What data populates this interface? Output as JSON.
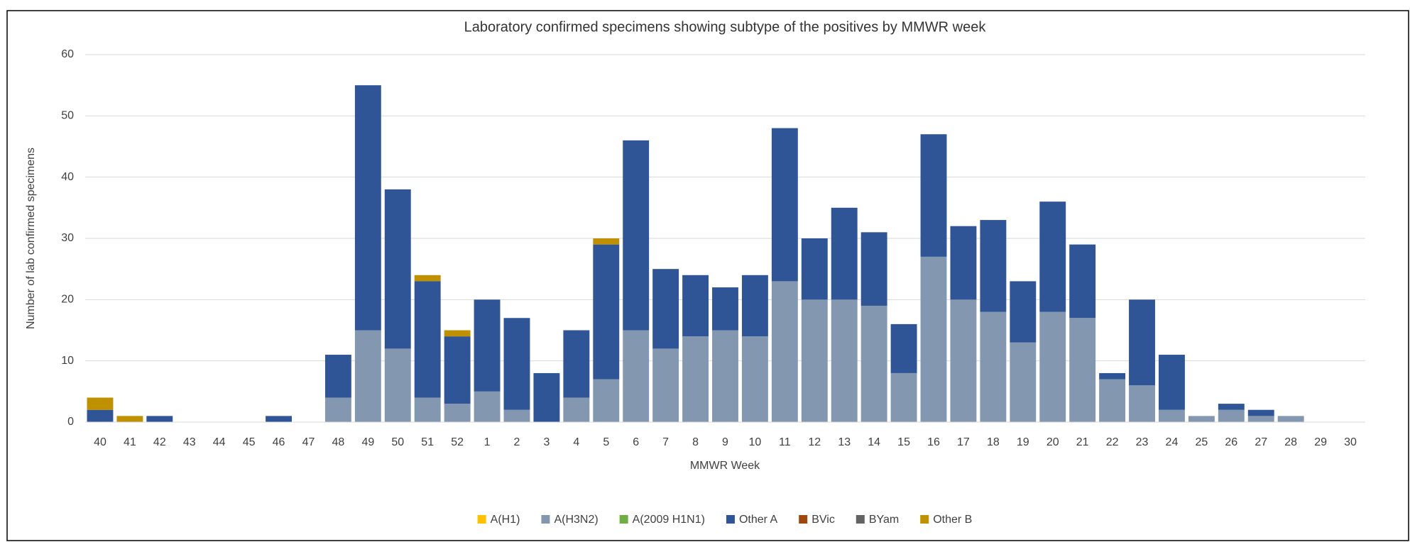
{
  "chart_data": {
    "type": "stacked_bar",
    "title": "Laboratory confirmed specimens showing subtype of the positives by MMWR week",
    "x_label": "MMWR Week",
    "y_label": "Number of lab confirmed specimens",
    "categories": [
      "40",
      "41",
      "42",
      "43",
      "44",
      "45",
      "46",
      "47",
      "48",
      "49",
      "50",
      "51",
      "52",
      "1",
      "2",
      "3",
      "4",
      "5",
      "6",
      "7",
      "8",
      "9",
      "10",
      "11",
      "12",
      "13",
      "14",
      "15",
      "16",
      "17",
      "18",
      "19",
      "20",
      "21",
      "22",
      "23",
      "24",
      "25",
      "26",
      "27",
      "28",
      "29",
      "30"
    ],
    "series": [
      {
        "name": "A(H1)",
        "color": "#ffc000",
        "values": [
          0,
          0,
          0,
          0,
          0,
          0,
          0,
          0,
          0,
          0,
          0,
          0,
          0,
          0,
          0,
          0,
          0,
          0,
          0,
          0,
          0,
          0,
          0,
          0,
          0,
          0,
          0,
          0,
          0,
          0,
          0,
          0,
          0,
          0,
          0,
          0,
          0,
          0,
          0,
          0,
          0,
          0,
          0
        ]
      },
      {
        "name": "A(H3N2)",
        "color": "#8497b0",
        "values": [
          0,
          0,
          0,
          0,
          0,
          0,
          0,
          0,
          4,
          15,
          12,
          4,
          3,
          5,
          2,
          0,
          4,
          7,
          15,
          12,
          14,
          15,
          14,
          23,
          20,
          20,
          19,
          8,
          27,
          20,
          18,
          13,
          18,
          17,
          7,
          6,
          2,
          1,
          2,
          1,
          1,
          0,
          0
        ]
      },
      {
        "name": "A(2009 H1N1)",
        "color": "#70ad47",
        "values": [
          0,
          0,
          0,
          0,
          0,
          0,
          0,
          0,
          0,
          0,
          0,
          0,
          0,
          0,
          0,
          0,
          0,
          0,
          0,
          0,
          0,
          0,
          0,
          0,
          0,
          0,
          0,
          0,
          0,
          0,
          0,
          0,
          0,
          0,
          0,
          0,
          0,
          0,
          0,
          0,
          0,
          0,
          0
        ]
      },
      {
        "name": "Other A",
        "color": "#2f5597",
        "values": [
          2,
          0,
          1,
          0,
          0,
          0,
          1,
          0,
          7,
          40,
          26,
          19,
          11,
          15,
          15,
          8,
          11,
          22,
          31,
          13,
          10,
          7,
          10,
          25,
          10,
          15,
          12,
          8,
          20,
          12,
          15,
          10,
          18,
          12,
          1,
          14,
          9,
          0,
          1,
          1,
          0,
          0,
          0
        ]
      },
      {
        "name": "BVic",
        "color": "#9e480e",
        "values": [
          0,
          0,
          0,
          0,
          0,
          0,
          0,
          0,
          0,
          0,
          0,
          0,
          0,
          0,
          0,
          0,
          0,
          0,
          0,
          0,
          0,
          0,
          0,
          0,
          0,
          0,
          0,
          0,
          0,
          0,
          0,
          0,
          0,
          0,
          0,
          0,
          0,
          0,
          0,
          0,
          0,
          0,
          0
        ]
      },
      {
        "name": "BYam",
        "color": "#636363",
        "values": [
          0,
          0,
          0,
          0,
          0,
          0,
          0,
          0,
          0,
          0,
          0,
          0,
          0,
          0,
          0,
          0,
          0,
          0,
          0,
          0,
          0,
          0,
          0,
          0,
          0,
          0,
          0,
          0,
          0,
          0,
          0,
          0,
          0,
          0,
          0,
          0,
          0,
          0,
          0,
          0,
          0,
          0,
          0
        ]
      },
      {
        "name": "Other B",
        "color": "#bf9000",
        "values": [
          2,
          1,
          0,
          0,
          0,
          0,
          0,
          0,
          0,
          0,
          0,
          1,
          1,
          0,
          0,
          0,
          0,
          1,
          0,
          0,
          0,
          0,
          0,
          0,
          0,
          0,
          0,
          0,
          0,
          0,
          0,
          0,
          0,
          0,
          0,
          0,
          0,
          0,
          0,
          0,
          0,
          0,
          0
        ]
      }
    ],
    "ylim": [
      0,
      60
    ],
    "yticks": [
      0,
      10,
      20,
      30,
      40,
      50,
      60
    ],
    "grid": true,
    "legend": "bottom"
  }
}
